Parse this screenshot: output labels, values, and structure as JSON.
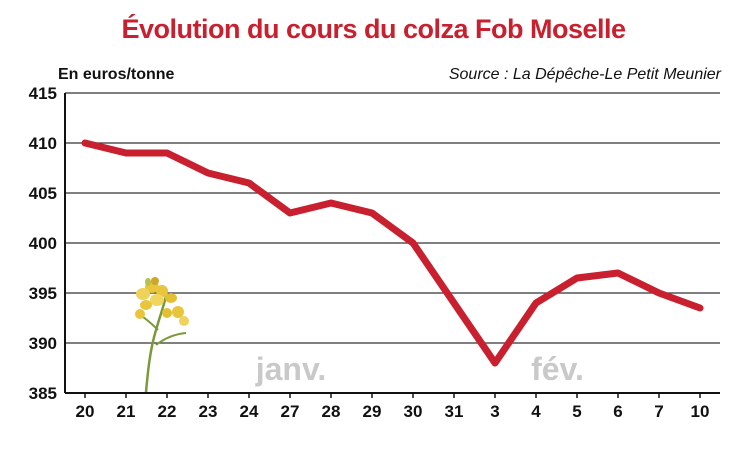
{
  "header": {
    "title": "Évolution du cours du colza Fob Moselle",
    "unit": "En euros/tonne",
    "source": "Source : La Dépêche-Le Petit Meunier"
  },
  "colors": {
    "title": "#c8202e",
    "line": "#c8202e",
    "grid": "#333333",
    "month_label": "#c9c9c9",
    "flower": "#e8c53a",
    "stem": "#7a9a3a"
  },
  "icons": {
    "illustration": "rapeseed-flower-icon"
  },
  "chart_data": {
    "type": "line",
    "title": "Évolution du cours du colza Fob Moselle",
    "ylabel": "En euros/tonne",
    "xlabel": "",
    "categories": [
      "20",
      "21",
      "22",
      "23",
      "24",
      "27",
      "28",
      "29",
      "30",
      "31",
      "3",
      "4",
      "5",
      "6",
      "7",
      "10"
    ],
    "values": [
      410,
      409,
      409,
      407,
      406,
      403,
      404,
      403,
      400,
      394,
      388,
      394,
      396.5,
      397,
      395,
      393.5
    ],
    "ylim": [
      385,
      415
    ],
    "yticks": [
      385,
      390,
      395,
      400,
      405,
      410,
      415
    ],
    "grid": true,
    "month_labels": [
      {
        "text": "janv.",
        "at_index": 6
      },
      {
        "text": "fév.",
        "at_index": 12.5
      }
    ]
  }
}
